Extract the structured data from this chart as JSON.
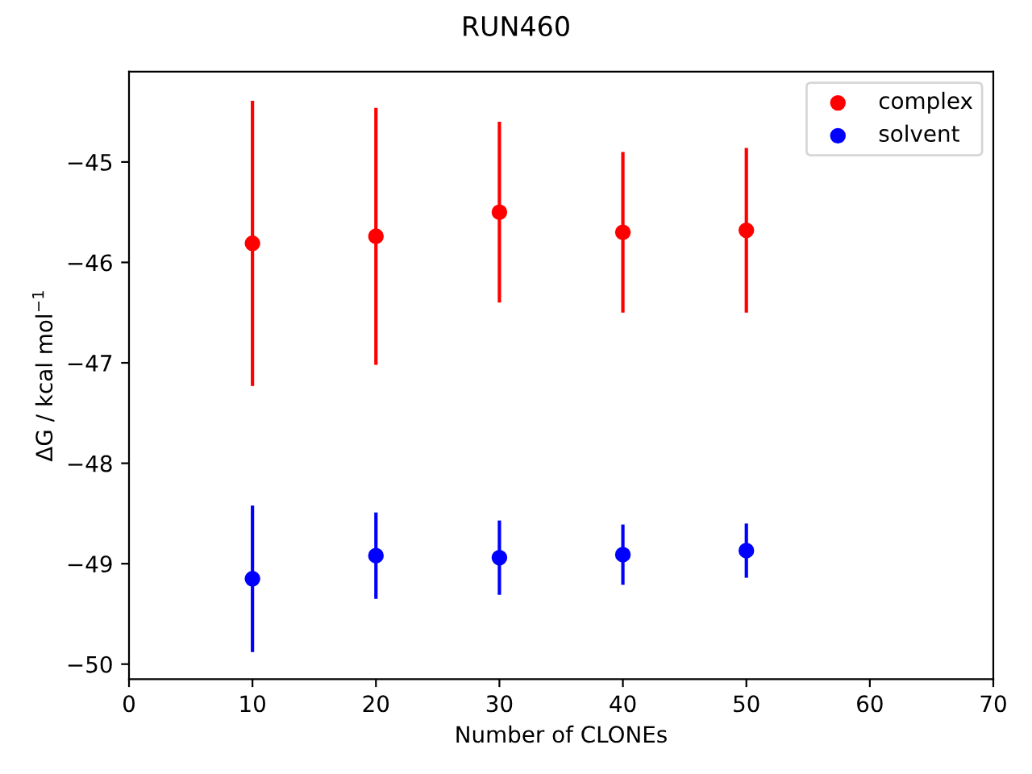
{
  "chart_data": {
    "type": "scatter",
    "title": "RUN460",
    "xlabel": "Number of CLONEs",
    "ylabel": "ΔG / kcal mol$^{−1}$",
    "x": [
      10,
      20,
      30,
      40,
      50
    ],
    "series": [
      {
        "name": "complex",
        "color": "#ff0000",
        "values": [
          -45.81,
          -45.74,
          -45.5,
          -45.7,
          -45.68
        ],
        "errors": [
          1.42,
          1.28,
          0.9,
          0.8,
          0.82
        ]
      },
      {
        "name": "solvent",
        "color": "#0000ff",
        "values": [
          -49.15,
          -48.92,
          -48.94,
          -48.91,
          -48.87
        ],
        "errors": [
          0.73,
          0.43,
          0.37,
          0.3,
          0.27
        ]
      }
    ],
    "xlim": [
      0,
      70
    ],
    "xticks": [
      0,
      10,
      20,
      30,
      40,
      50,
      60,
      70
    ],
    "ylim": [
      -50.15,
      -44.1
    ],
    "yticks": [
      {
        "value": -50,
        "label": "−50"
      },
      {
        "value": -49,
        "label": "−49"
      },
      {
        "value": -48,
        "label": "−48"
      },
      {
        "value": -47,
        "label": "−47"
      },
      {
        "value": -46,
        "label": "−46"
      },
      {
        "value": -45,
        "label": "−45"
      }
    ],
    "marker": "circle",
    "legend": "top right",
    "grid": false
  }
}
